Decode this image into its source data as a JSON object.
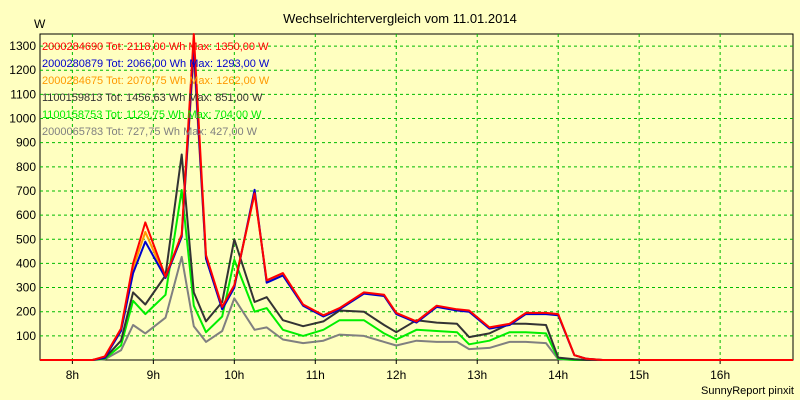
{
  "chart_data": {
    "type": "line",
    "title": "Wechselrichtervergleich vom 11.01.2014",
    "ylabel": "W",
    "xlabel": "",
    "ylim": [
      0,
      1350
    ],
    "y_ticks": [
      100,
      200,
      300,
      400,
      500,
      600,
      700,
      800,
      900,
      1000,
      1100,
      1200,
      1300
    ],
    "x_range": [
      7.6,
      16.9
    ],
    "x_ticks": [
      {
        "value": 8,
        "label": "8h"
      },
      {
        "value": 9,
        "label": "9h"
      },
      {
        "value": 10,
        "label": "10h"
      },
      {
        "value": 11,
        "label": "11h"
      },
      {
        "value": 12,
        "label": "12h"
      },
      {
        "value": 13,
        "label": "13h"
      },
      {
        "value": 14,
        "label": "14h"
      },
      {
        "value": 15,
        "label": "15h"
      },
      {
        "value": 16,
        "label": "16h"
      }
    ],
    "grid": true,
    "legend_position": "top-left",
    "x": [
      7.6,
      8.0,
      8.25,
      8.4,
      8.6,
      8.75,
      8.9,
      9.15,
      9.35,
      9.5,
      9.65,
      9.85,
      10.0,
      10.25,
      10.4,
      10.6,
      10.85,
      11.1,
      11.3,
      11.6,
      11.85,
      12.0,
      12.25,
      12.5,
      12.75,
      12.9,
      13.15,
      13.4,
      13.6,
      13.85,
      14.0,
      14.2,
      14.35,
      14.55,
      14.75,
      15.0,
      15.3,
      15.55,
      15.8,
      16.0,
      16.5,
      16.9
    ],
    "series": [
      {
        "name": "2000284690 Tot: 2118,00 Wh Max: 1350,00 W",
        "color": "#ff0000",
        "values": [
          0,
          0,
          0,
          15,
          130,
          400,
          570,
          345,
          520,
          1350,
          435,
          220,
          310,
          690,
          330,
          360,
          230,
          185,
          215,
          280,
          270,
          195,
          160,
          225,
          210,
          205,
          135,
          150,
          195,
          195,
          190,
          20,
          5,
          0,
          0,
          0,
          0,
          0,
          0,
          0,
          0,
          0
        ]
      },
      {
        "name": "2000280879 Tot: 2066,00 Wh Max: 1293,00 W",
        "color": "#0000cc",
        "values": [
          0,
          0,
          0,
          10,
          120,
          360,
          490,
          340,
          510,
          1293,
          420,
          210,
          300,
          705,
          320,
          350,
          225,
          180,
          210,
          275,
          265,
          190,
          155,
          220,
          205,
          200,
          130,
          145,
          190,
          190,
          185,
          20,
          5,
          0,
          0,
          0,
          0,
          0,
          0,
          0,
          0,
          0
        ]
      },
      {
        "name": "2000284675 Tot: 2070,75 Wh Max: 1262,00 W",
        "color": "#ff9900",
        "values": [
          0,
          0,
          0,
          12,
          125,
          380,
          530,
          340,
          515,
          1262,
          420,
          215,
          305,
          690,
          325,
          355,
          228,
          183,
          212,
          278,
          268,
          192,
          158,
          222,
          208,
          203,
          133,
          148,
          193,
          193,
          188,
          20,
          5,
          0,
          0,
          0,
          0,
          0,
          0,
          0,
          0,
          0
        ]
      },
      {
        "name": "1100159813 Tot: 1456,63 Wh Max: 851,00 W",
        "color": "#333333",
        "values": [
          0,
          0,
          0,
          8,
          80,
          280,
          230,
          350,
          851,
          280,
          160,
          240,
          500,
          240,
          260,
          165,
          140,
          160,
          205,
          200,
          145,
          115,
          165,
          155,
          150,
          95,
          110,
          150,
          150,
          145,
          10,
          3,
          0,
          0,
          0,
          0,
          0,
          0,
          0,
          0,
          0,
          0
        ]
      },
      {
        "name": "1100158753 Tot: 1129,75 Wh Max: 704,00 W",
        "color": "#00ee00",
        "values": [
          0,
          0,
          0,
          5,
          60,
          245,
          190,
          270,
          704,
          225,
          115,
          180,
          415,
          200,
          215,
          125,
          100,
          125,
          165,
          165,
          110,
          85,
          125,
          120,
          115,
          65,
          80,
          115,
          115,
          110,
          5,
          0,
          0,
          0,
          0,
          0,
          0,
          0,
          0,
          0,
          0,
          0
        ]
      },
      {
        "name": "2000065783 Tot: 727,75 Wh Max: 427,00 W",
        "color": "#808080",
        "values": [
          0,
          0,
          0,
          3,
          40,
          145,
          110,
          175,
          427,
          140,
          75,
          120,
          255,
          125,
          135,
          85,
          70,
          80,
          105,
          100,
          75,
          60,
          80,
          75,
          75,
          45,
          50,
          75,
          75,
          70,
          3,
          0,
          0,
          0,
          0,
          0,
          0,
          0,
          0,
          0,
          0,
          0
        ]
      }
    ],
    "footer": "SunnyReport pinxit"
  }
}
